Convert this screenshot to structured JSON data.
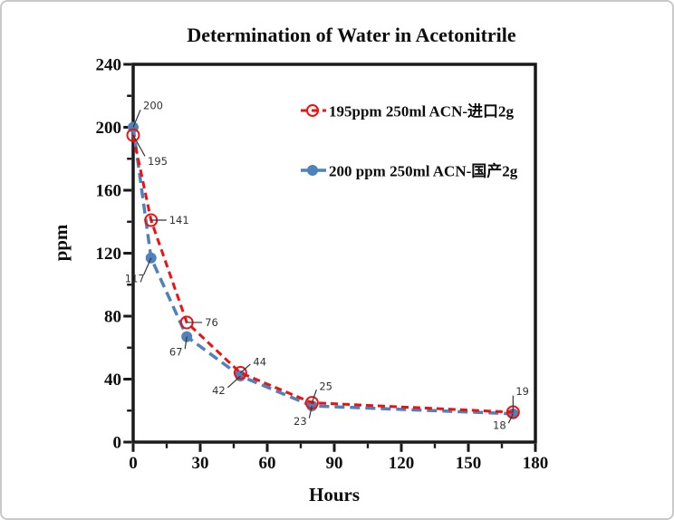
{
  "window": {
    "background": "#ffffff",
    "border_color": "#c9c9c9"
  },
  "chart_data": {
    "type": "line",
    "title": "Determination of Water in Acetonitrile",
    "xlabel": "Hours",
    "ylabel": "ppm",
    "xlim": [
      0,
      180
    ],
    "ylim": [
      0,
      240
    ],
    "x_major_tick": 30,
    "x_minor_tick": 15,
    "y_major_tick": 40,
    "y_minor_tick": 20,
    "x_tick_labels": [
      "0",
      "30",
      "60",
      "90",
      "120",
      "150",
      "180"
    ],
    "y_tick_labels": [
      "0",
      "40",
      "80",
      "120",
      "160",
      "200",
      "240"
    ],
    "grid": false,
    "legend_position": "inside-top-right",
    "axis_color": "#1a1a1a",
    "annotation_color": "#333333",
    "x": [
      0,
      8,
      24,
      48,
      80,
      170
    ],
    "series": [
      {
        "name": "195ppm  250ml ACN-进口2g",
        "color": "#ee1111",
        "marker": "open-circle",
        "line_style": "dashed",
        "values": [
          195,
          141,
          76,
          44,
          25,
          19
        ],
        "point_labels": [
          "195",
          "141",
          "76",
          "44",
          "25",
          "19"
        ],
        "label_offsets": [
          [
            16,
            33
          ],
          [
            20,
            4
          ],
          [
            20,
            4
          ],
          [
            14,
            -8
          ],
          [
            8,
            -14
          ],
          [
            3,
            -19
          ]
        ]
      },
      {
        "name": "200 ppm 250ml ACN-国产2g",
        "color": "#4f81bd",
        "marker": "filled-circle",
        "line_style": "dashed",
        "values": [
          200,
          117,
          67,
          42,
          23,
          18
        ],
        "point_labels": [
          "200",
          "117",
          "67",
          "42",
          "23",
          "18"
        ],
        "label_offsets": [
          [
            11,
            -20
          ],
          [
            -18,
            27
          ],
          [
            -12,
            21
          ],
          [
            -24,
            20
          ],
          [
            -13,
            21
          ],
          [
            -15,
            17
          ]
        ]
      }
    ]
  }
}
